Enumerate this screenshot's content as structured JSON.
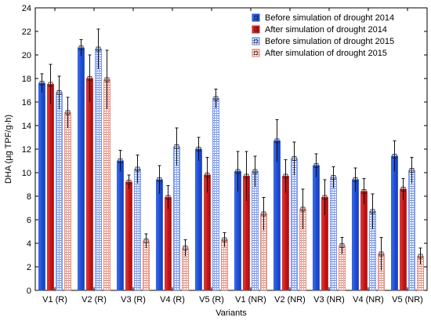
{
  "chart_data": {
    "type": "bar",
    "xlabel": "Variants",
    "ylabel": "DHA (µg TPF/g·h)",
    "ylim": [
      0,
      24
    ],
    "yticks": [
      0,
      2,
      4,
      6,
      8,
      10,
      12,
      14,
      16,
      18,
      20,
      22,
      24
    ],
    "grid": false,
    "legend_position": "top-right",
    "categories": [
      "V1 (R)",
      "V2 (R)",
      "V3 (R)",
      "V4 (R)",
      "V5 (R)",
      "V1 (NR)",
      "V2 (NR)",
      "V3 (NR)",
      "V4 (NR)",
      "V5 (NR)"
    ],
    "series": [
      {
        "name": "Before simulation of drought 2014",
        "color": "#1f4fd6",
        "pattern": "solid",
        "values": [
          17.6,
          20.6,
          11.0,
          9.4,
          12.0,
          10.1,
          12.7,
          10.6,
          9.4,
          11.4
        ],
        "errors": [
          0.8,
          0.7,
          0.9,
          1.2,
          1.0,
          1.7,
          1.8,
          1.0,
          1.0,
          1.3
        ]
      },
      {
        "name": "After simulation of drought 2014",
        "color": "#cc1a1a",
        "pattern": "solid",
        "values": [
          17.5,
          18.0,
          9.2,
          7.9,
          9.8,
          9.7,
          9.7,
          7.9,
          8.4,
          8.6
        ],
        "errors": [
          1.7,
          2.0,
          0.6,
          1.0,
          1.5,
          2.1,
          1.4,
          1.5,
          1.1,
          0.9
        ]
      },
      {
        "name": "Before simulation of drought 2015",
        "color": "#5f86e6",
        "pattern": "hatch",
        "values": [
          16.8,
          20.5,
          10.3,
          12.2,
          16.3,
          10.1,
          11.2,
          9.6,
          6.7,
          10.2
        ],
        "errors": [
          1.4,
          1.7,
          1.2,
          1.6,
          0.8,
          1.3,
          1.4,
          0.9,
          1.5,
          1.1
        ]
      },
      {
        "name": "After simulation of drought 2015",
        "color": "#e07a6a",
        "pattern": "hatch",
        "values": [
          15.1,
          17.9,
          4.2,
          3.6,
          4.3,
          6.5,
          6.9,
          3.8,
          3.1,
          2.9
        ],
        "errors": [
          1.3,
          2.5,
          0.6,
          0.7,
          0.6,
          1.4,
          1.7,
          0.7,
          1.4,
          0.7
        ]
      }
    ]
  }
}
